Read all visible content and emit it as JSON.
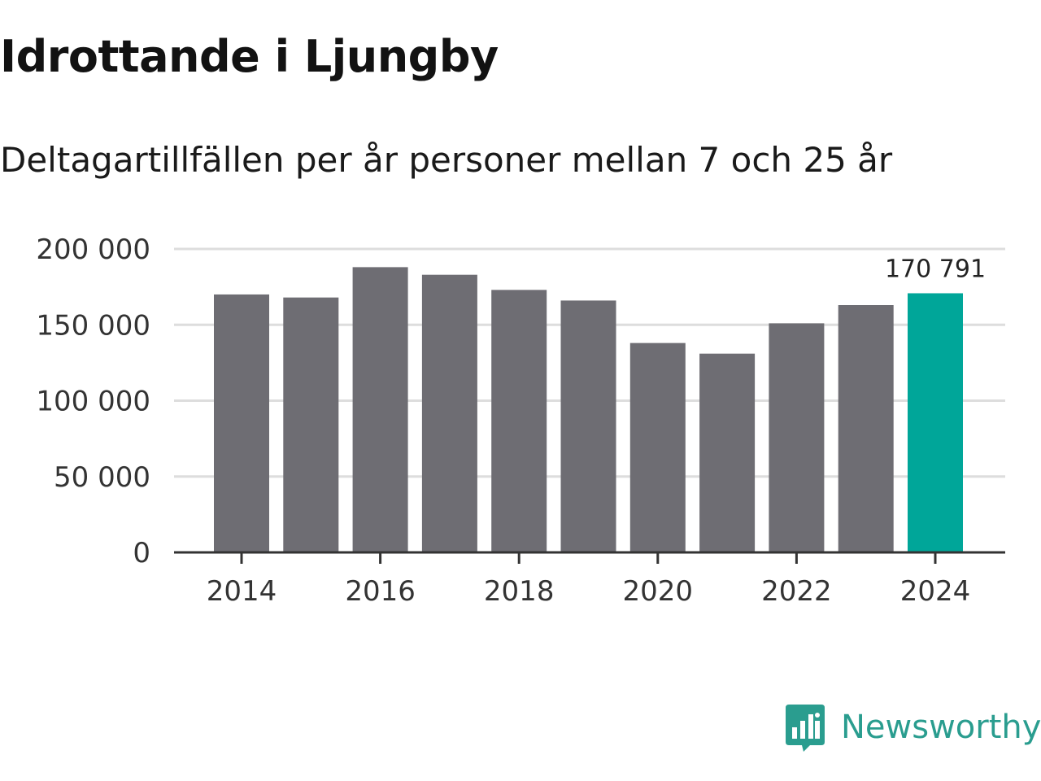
{
  "header": {
    "title": "Idrottande i Ljungby",
    "subtitle": "Deltagartillfällen per år personer mellan 7 och 25 år"
  },
  "chart_data": {
    "type": "bar",
    "title": "Idrottande i Ljungby",
    "subtitle": "Deltagartillfällen per år personer mellan 7 och 25 år",
    "xlabel": "",
    "ylabel": "",
    "categories": [
      "2014",
      "2015",
      "2016",
      "2017",
      "2018",
      "2019",
      "2020",
      "2021",
      "2022",
      "2023",
      "2024"
    ],
    "values": [
      170000,
      168000,
      188000,
      183000,
      173000,
      166000,
      138000,
      131000,
      151000,
      163000,
      170791
    ],
    "highlight_index": 10,
    "annotations": [
      {
        "category": "2024",
        "label": "170 791"
      }
    ],
    "ylim": [
      0,
      200000
    ],
    "yticks": [
      0,
      50000,
      100000,
      150000,
      200000
    ],
    "ytick_labels": [
      "0",
      "50 000",
      "100 000",
      "150 000",
      "200 000"
    ],
    "xticks": [
      "2014",
      "2016",
      "2018",
      "2020",
      "2022",
      "2024"
    ],
    "grid": true,
    "colors": {
      "bar": "#6e6d73",
      "highlight": "#00a699",
      "grid": "#dddddd",
      "axis": "#333333"
    }
  },
  "brand": {
    "name": "Newsworthy",
    "logo_icon": "newsworthy-logo-icon",
    "color": "#2a9d8f"
  }
}
